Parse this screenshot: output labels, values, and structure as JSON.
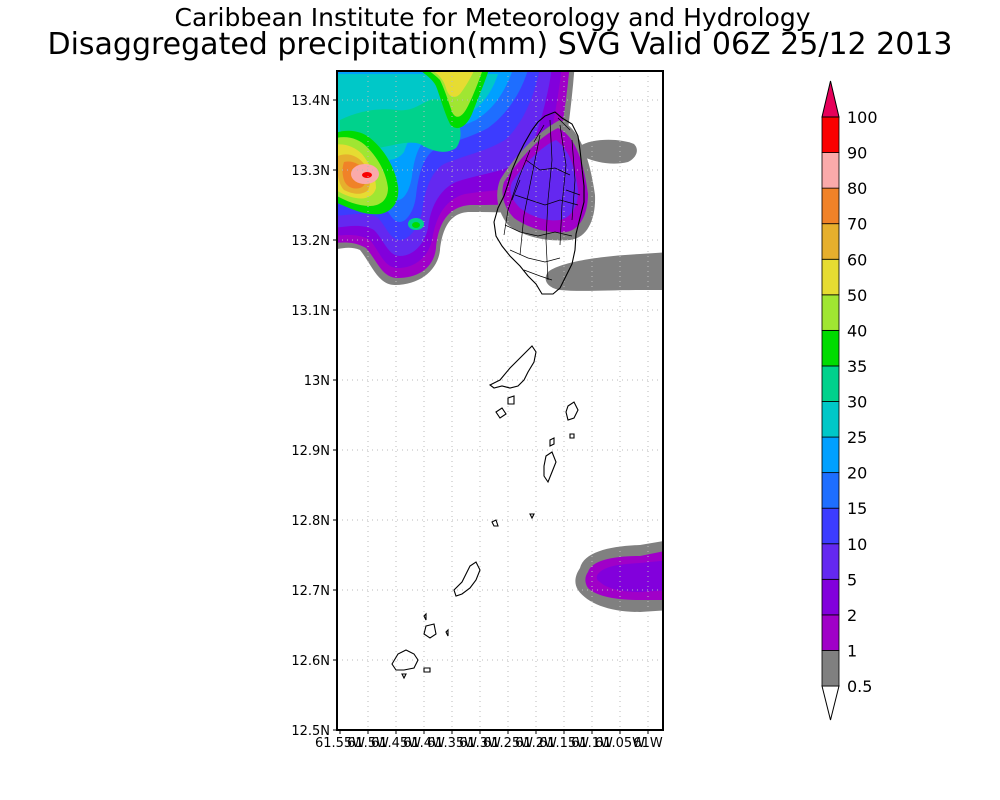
{
  "title": {
    "line1": "Caribbean Institute for Meteorology and Hydrology",
    "line2": "Disaggregated precipitation(mm) SVG Valid 06Z 25/12 2013"
  },
  "axes": {
    "lat_labels": [
      "13.4N",
      "13.3N",
      "13.2N",
      "13.1N",
      "13N",
      "12.9N",
      "12.8N",
      "12.7N",
      "12.6N",
      "12.5N"
    ],
    "lon_labels": [
      "61.55W",
      "61.5W",
      "61.45W",
      "61.4W",
      "61.35W",
      "61.3W",
      "61.25W",
      "61.2W",
      "61.15W",
      "61.1W",
      "61.05W",
      "61W"
    ]
  },
  "colorbar": {
    "levels": [
      "0.5",
      "1",
      "2",
      "5",
      "10",
      "15",
      "20",
      "25",
      "30",
      "35",
      "40",
      "50",
      "60",
      "70",
      "80",
      "90",
      "100"
    ],
    "colors": [
      "#808080",
      "#a000c8",
      "#8200dc",
      "#6428f0",
      "#3c3cff",
      "#1e6eff",
      "#00a0ff",
      "#00c8c8",
      "#00d28c",
      "#00dc00",
      "#a0e632",
      "#e6dc32",
      "#e6af2d",
      "#f08228",
      "#faaaaa",
      "#fa0000",
      "#e6004e"
    ],
    "over_color": "#e6005a"
  }
}
